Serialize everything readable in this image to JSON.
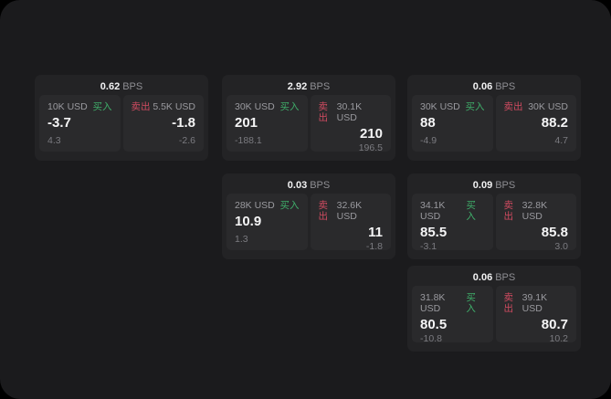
{
  "labels": {
    "bps": "BPS",
    "buy": "买入",
    "sell": "卖出"
  },
  "colors": {
    "outer_background": "#000000",
    "page_background": "#1b1b1d",
    "card_background": "#232325",
    "tile_background": "#2a2a2c",
    "text_primary": "#f5f5f6",
    "text_secondary": "#9a9a9f",
    "text_muted": "#7b7b80",
    "buy_green": "#3fae6a",
    "sell_red": "#cf4b60"
  },
  "cards": [
    {
      "bps": "0.62",
      "buy": {
        "amount": "10K USD",
        "value": "-3.7",
        "sub": "4.3"
      },
      "sell": {
        "amount": "5.5K USD",
        "value": "-1.8",
        "sub": "-2.6"
      }
    },
    {
      "bps": "2.92",
      "buy": {
        "amount": "30K USD",
        "value": "201",
        "sub": "-188.1"
      },
      "sell": {
        "amount": "30.1K USD",
        "value": "210",
        "sub": "196.5"
      }
    },
    {
      "bps": "0.06",
      "buy": {
        "amount": "30K USD",
        "value": "88",
        "sub": "-4.9"
      },
      "sell": {
        "amount": "30K USD",
        "value": "88.2",
        "sub": "4.7"
      }
    },
    {
      "bps": "0.03",
      "buy": {
        "amount": "28K USD",
        "value": "10.9",
        "sub": "1.3"
      },
      "sell": {
        "amount": "32.6K USD",
        "value": "11",
        "sub": "-1.8"
      }
    },
    {
      "bps": "0.09",
      "buy": {
        "amount": "34.1K USD",
        "value": "85.5",
        "sub": "-3.1"
      },
      "sell": {
        "amount": "32.8K USD",
        "value": "85.8",
        "sub": "3.0"
      }
    },
    {
      "bps": "0.06",
      "buy": {
        "amount": "31.8K USD",
        "value": "80.5",
        "sub": "-10.8"
      },
      "sell": {
        "amount": "39.1K USD",
        "value": "80.7",
        "sub": "10.2"
      }
    }
  ]
}
